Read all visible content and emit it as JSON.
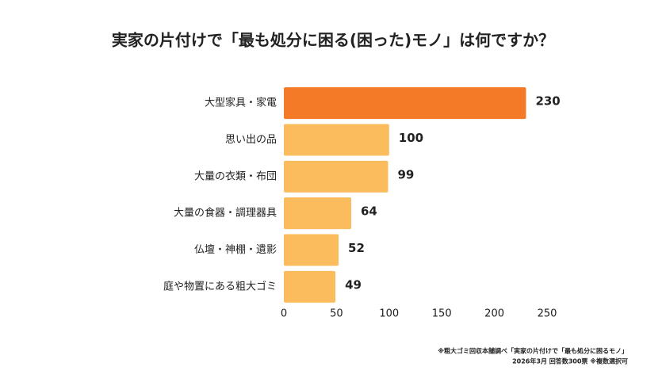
{
  "chart_data": {
    "type": "barh",
    "title": "実家の片付けで「最も処分に困る(困った)モノ」は何ですか？",
    "categories": [
      "大型家具・家電",
      "思い出の品",
      "大量の衣類・布団",
      "大量の食器・調理器具",
      "仏壇・神棚・遺影",
      "庭や物置にある粗大ゴミ"
    ],
    "values": [
      230,
      100,
      99,
      64,
      52,
      49
    ],
    "colors": [
      "#f57a28",
      "#fbbc5e",
      "#fbbc5e",
      "#fbbc5e",
      "#fbbc5e",
      "#fbbc5e"
    ],
    "xlim": [
      0,
      250
    ],
    "xticks": [
      0,
      50,
      100,
      150,
      200,
      250
    ],
    "grid": false,
    "notes": [
      "※粗大ゴミ回収本舗調べ「実家の片付けで「最も処分に困るモノ」",
      "2026年3月 回答数300票 ※複数選択可"
    ]
  }
}
